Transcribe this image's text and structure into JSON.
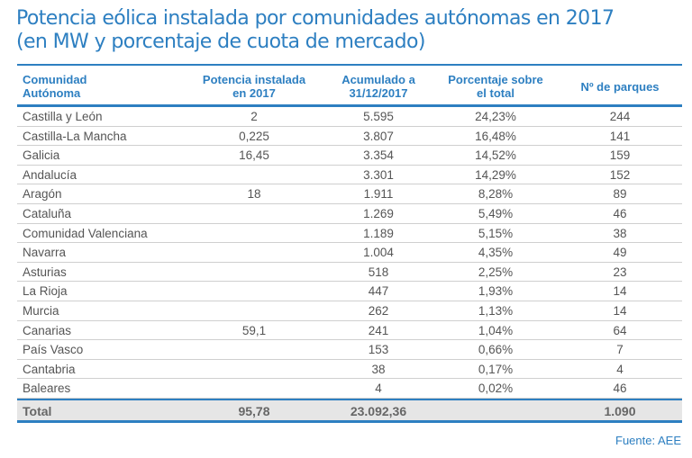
{
  "title": [
    "Potencia eólica instalada por comunidades autónomas en 2017",
    "(en MW y porcentaje de cuota de mercado)"
  ],
  "headers": [
    "Comunidad\nAutónoma",
    "Potencia instalada\nen 2017",
    "Acumulado a\n31/12/2017",
    "Porcentaje sobre\nel total",
    "Nº de parques"
  ],
  "rows": [
    [
      "Castilla y León",
      "2",
      "5.595",
      "24,23%",
      "244"
    ],
    [
      "Castilla-La Mancha",
      "0,225",
      "3.807",
      "16,48%",
      "141"
    ],
    [
      "Galicia",
      "16,45",
      "3.354",
      "14,52%",
      "159"
    ],
    [
      "Andalucía",
      "",
      "3.301",
      "14,29%",
      "152"
    ],
    [
      "Aragón",
      "18",
      "1.911",
      "8,28%",
      "89"
    ],
    [
      "Cataluña",
      "",
      "1.269",
      "5,49%",
      "46"
    ],
    [
      "Comunidad Valenciana",
      "",
      "1.189",
      "5,15%",
      "38"
    ],
    [
      "Navarra",
      "",
      "1.004",
      "4,35%",
      "49"
    ],
    [
      "Asturias",
      "",
      "518",
      "2,25%",
      "23"
    ],
    [
      "La Rioja",
      "",
      "447",
      "1,93%",
      "14"
    ],
    [
      "Murcia",
      "",
      "262",
      "1,13%",
      "14"
    ],
    [
      "Canarias",
      "59,1",
      "241",
      "1,04%",
      "64"
    ],
    [
      "País Vasco",
      "",
      "153",
      "0,66%",
      "7"
    ],
    [
      "Cantabria",
      "",
      "38",
      "0,17%",
      "4"
    ],
    [
      "Baleares",
      "",
      "4",
      "0,02%",
      "46"
    ]
  ],
  "total": [
    "Total",
    "95,78",
    "23.092,36",
    "",
    "1.090"
  ],
  "source": "Fuente: AEE",
  "colors": {
    "accent": "#2d7fc1",
    "total_bg": "#e6e6e6"
  }
}
